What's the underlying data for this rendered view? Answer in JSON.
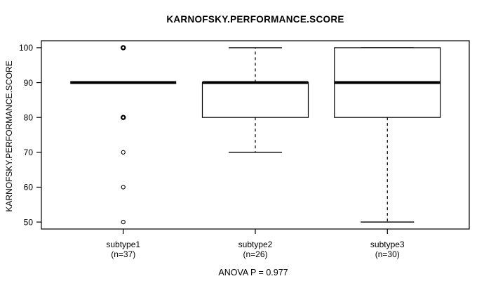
{
  "page": {
    "title": "KARNOFSKY.PERFORMANCE.SCORE",
    "footnote": "ANOVA P = 0.977"
  },
  "chart_data": {
    "type": "boxplot",
    "title": "KARNOFSKY.PERFORMANCE.SCORE",
    "ylabel": "KARNOFSKY.PERFORMANCE.SCORE",
    "xlabel": "",
    "footnote": "ANOVA P = 0.977",
    "ylim": [
      48,
      102
    ],
    "yticks": [
      50,
      60,
      70,
      80,
      90,
      100
    ],
    "grid": false,
    "legend": null,
    "line_color": "#000000",
    "background_color": "#ffffff",
    "categories": [
      "subtype1",
      "subtype2",
      "subtype3"
    ],
    "category_counts": [
      "(n=37)",
      "(n=26)",
      "(n=30)"
    ],
    "groups": [
      {
        "label": "subtype1",
        "n": 37,
        "whisker_low": 90,
        "q1": 90,
        "median": 90,
        "q3": 90,
        "whisker_high": 90,
        "outliers": [
          100,
          80,
          70,
          60,
          50
        ],
        "outliers_emphasized": [
          100,
          80
        ]
      },
      {
        "label": "subtype2",
        "n": 26,
        "whisker_low": 70,
        "q1": 80,
        "median": 90,
        "q3": 90,
        "whisker_high": 100,
        "outliers": [],
        "outliers_emphasized": []
      },
      {
        "label": "subtype3",
        "n": 30,
        "whisker_low": 50,
        "q1": 80,
        "median": 90,
        "q3": 100,
        "whisker_high": 100,
        "outliers": [],
        "outliers_emphasized": []
      }
    ]
  }
}
